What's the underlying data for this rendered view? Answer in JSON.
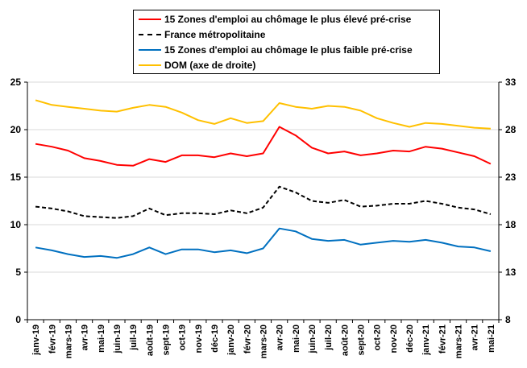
{
  "chart_data": {
    "type": "line",
    "title": "",
    "categories": [
      "janv-19",
      "févr-19",
      "mars-19",
      "avr-19",
      "mai-19",
      "juin-19",
      "juil-19",
      "août-19",
      "sept-19",
      "oct-19",
      "nov-19",
      "déc-19",
      "janv-20",
      "févr-20",
      "mars-20",
      "avr-20",
      "mai-20",
      "juin-20",
      "juil-20",
      "août-20",
      "sept-20",
      "oct-20",
      "nov-20",
      "déc-20",
      "janv-21",
      "févr-21",
      "mars-21",
      "avr-21",
      "mai-21"
    ],
    "y_left": {
      "min": 0,
      "max": 25,
      "ticks": [
        0,
        5,
        10,
        15,
        20,
        25
      ]
    },
    "y_right": {
      "min": 8,
      "max": 33,
      "ticks": [
        8,
        13,
        18,
        23,
        28,
        33
      ]
    },
    "series": [
      {
        "name": "15 Zones d'emploi au chômage le plus élevé pré-crise",
        "color": "#ff0000",
        "dash": "solid",
        "axis": "left",
        "values": [
          18.5,
          18.2,
          17.8,
          17.0,
          16.7,
          16.3,
          16.2,
          16.9,
          16.6,
          17.3,
          17.3,
          17.1,
          17.5,
          17.2,
          17.5,
          20.3,
          19.4,
          18.1,
          17.5,
          17.7,
          17.3,
          17.5,
          17.8,
          17.7,
          18.2,
          18.0,
          17.6,
          17.2,
          16.4
        ]
      },
      {
        "name": "France métropolitaine",
        "color": "#000000",
        "dash": "dashed",
        "axis": "left",
        "values": [
          11.9,
          11.7,
          11.4,
          10.9,
          10.8,
          10.7,
          10.9,
          11.7,
          11.0,
          11.2,
          11.2,
          11.1,
          11.5,
          11.2,
          11.8,
          14.0,
          13.4,
          12.5,
          12.3,
          12.6,
          11.9,
          12.0,
          12.2,
          12.2,
          12.5,
          12.2,
          11.8,
          11.6,
          11.1
        ]
      },
      {
        "name": "15 Zones d'emploi au chômage le plus faible pré-crise",
        "color": "#0070c0",
        "dash": "solid",
        "axis": "left",
        "values": [
          7.6,
          7.3,
          6.9,
          6.6,
          6.7,
          6.5,
          6.9,
          7.6,
          6.9,
          7.4,
          7.4,
          7.1,
          7.3,
          7.0,
          7.5,
          9.6,
          9.3,
          8.5,
          8.3,
          8.4,
          7.9,
          8.1,
          8.3,
          8.2,
          8.4,
          8.1,
          7.7,
          7.6,
          7.2
        ]
      },
      {
        "name": "DOM (axe de droite)",
        "color": "#ffc000",
        "dash": "solid",
        "axis": "right",
        "values": [
          31.1,
          30.6,
          30.4,
          30.2,
          30.0,
          29.9,
          30.3,
          30.6,
          30.4,
          29.8,
          29.0,
          28.6,
          29.2,
          28.7,
          28.9,
          30.8,
          30.4,
          30.2,
          30.5,
          30.4,
          30.0,
          29.2,
          28.7,
          28.3,
          28.7,
          28.6,
          28.4,
          28.2,
          28.1
        ]
      }
    ]
  }
}
